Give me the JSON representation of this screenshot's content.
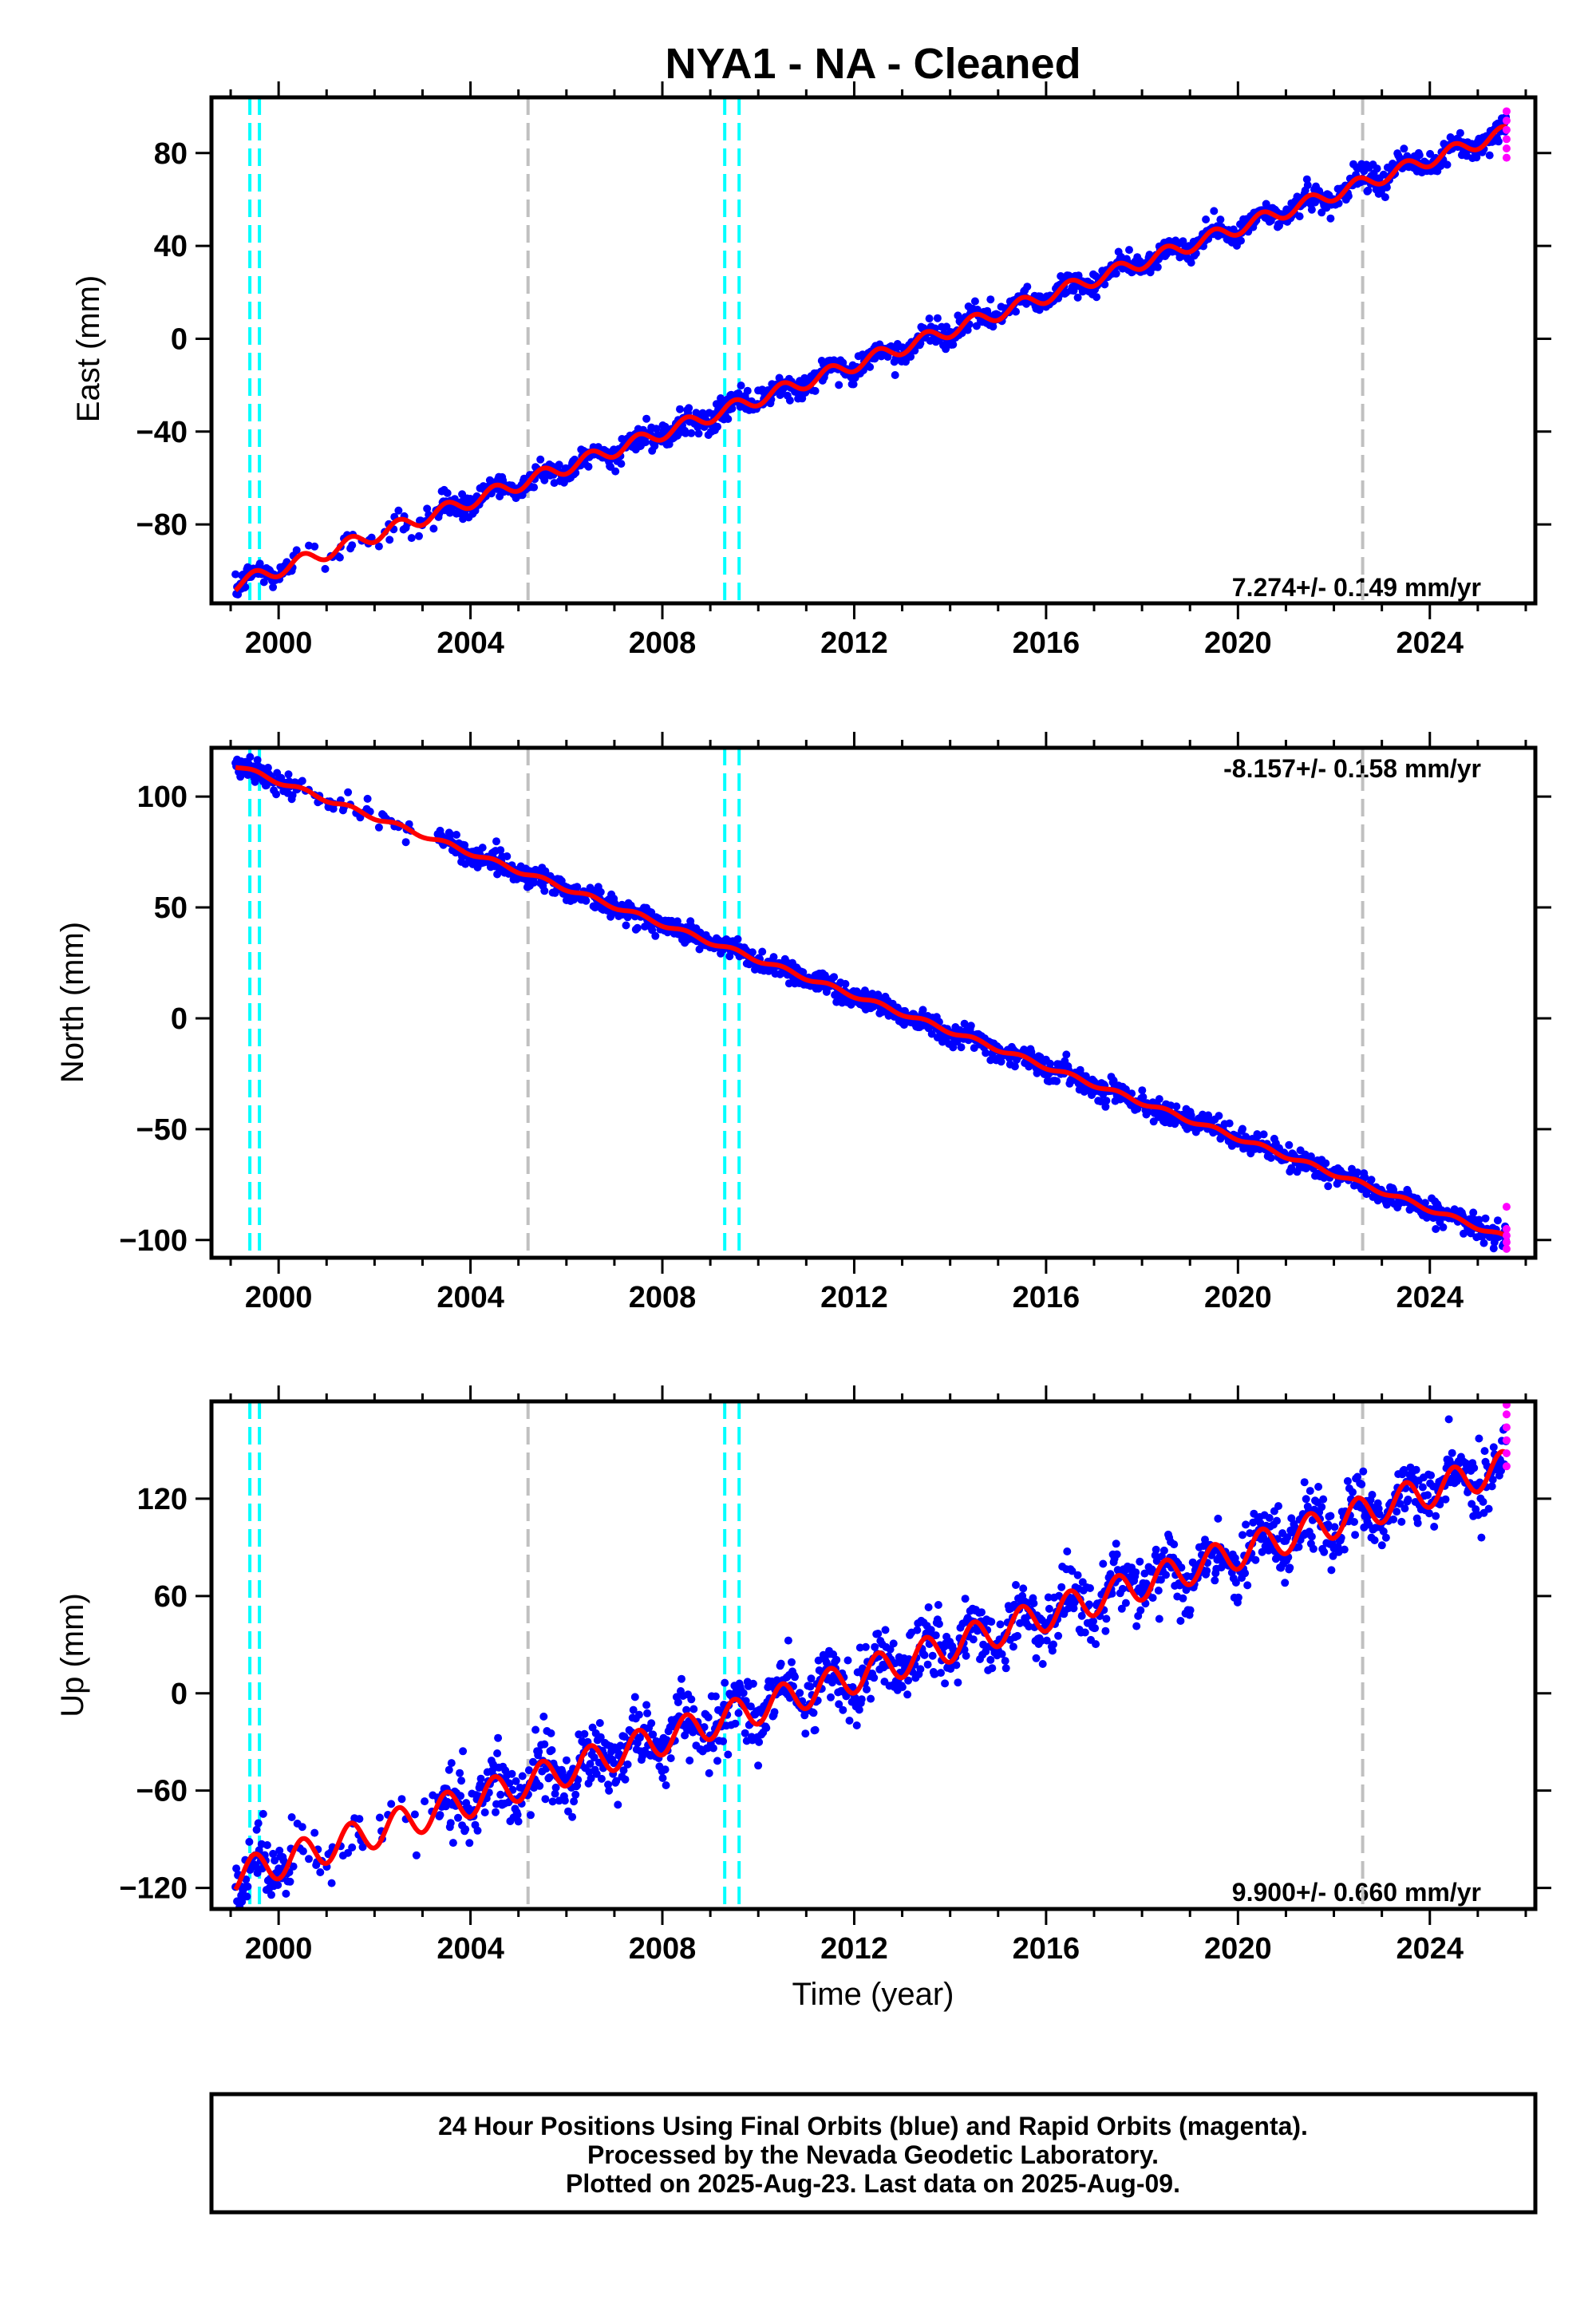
{
  "title": "NYA1  - NA - Cleaned",
  "xlabel": "Time (year)",
  "caption": [
    "24 Hour Positions Using Final Orbits (blue) and Rapid Orbits (magenta).",
    "Processed by the Nevada Geodetic Laboratory.",
    "Plotted on 2025-Aug-23. Last data on 2025-Aug-09."
  ],
  "colors": {
    "final_orbits": "#0000ff",
    "rapid_orbits": "#ff00ff",
    "model_fit": "#ff0000",
    "antenna_change": "#00ffff",
    "equipment_change": "#c0c0c0",
    "frame": "#000000"
  },
  "chart_data": [
    {
      "type": "scatter",
      "component": "east",
      "ylabel": "East (mm)",
      "xlim": [
        1998.6,
        2026.2
      ],
      "ylim": [
        -114,
        104
      ],
      "xticks": [
        2000,
        2004,
        2008,
        2012,
        2016,
        2020,
        2024
      ],
      "yticks": [
        -80,
        -40,
        0,
        40,
        80
      ],
      "rate_label": "7.274+/- 0.149 mm/yr",
      "rate_position": "bottom-right",
      "trend": {
        "start": [
          1999.1,
          -106
        ],
        "end": [
          2025.6,
          89
        ],
        "seasonal_amplitude_mm": 3.0,
        "scatter_mm": 2.5
      },
      "rapid_points": {
        "x": 2025.6,
        "y": [
          78,
          82,
          86,
          90,
          94,
          98
        ]
      },
      "cyan_lines": [
        1999.4,
        1999.6,
        2009.3,
        2009.6
      ],
      "gray_lines": [
        2005.2,
        2022.6
      ]
    },
    {
      "type": "scatter",
      "component": "north",
      "ylabel": "North (mm)",
      "xlim": [
        1998.6,
        2026.2
      ],
      "ylim": [
        -108,
        122
      ],
      "xticks": [
        2000,
        2004,
        2008,
        2012,
        2016,
        2020,
        2024
      ],
      "yticks": [
        -100,
        -50,
        0,
        50,
        100
      ],
      "rate_label": "-8.157+/- 0.158 mm/yr",
      "rate_position": "top-right",
      "trend": {
        "start": [
          1999.1,
          114
        ],
        "end": [
          2025.6,
          -99
        ],
        "seasonal_amplitude_mm": 1.0,
        "scatter_mm": 2.5
      },
      "rapid_points": {
        "x": 2025.6,
        "y": [
          -104,
          -101,
          -98,
          -95,
          -85
        ]
      },
      "cyan_lines": [
        1999.4,
        1999.6,
        2009.3,
        2009.6
      ],
      "gray_lines": [
        2005.2,
        2022.6
      ]
    },
    {
      "type": "scatter",
      "component": "up",
      "ylabel": "Up (mm)",
      "xlim": [
        1998.6,
        2026.2
      ],
      "ylim": [
        -133,
        180
      ],
      "xticks": [
        2000,
        2004,
        2008,
        2012,
        2016,
        2020,
        2024
      ],
      "yticks": [
        -120,
        -60,
        0,
        60,
        120
      ],
      "rate_label": "9.900+/- 0.660 mm/yr",
      "rate_position": "bottom-right",
      "trend": {
        "start": [
          1999.1,
          -113
        ],
        "end": [
          2025.6,
          140
        ],
        "seasonal_amplitude_mm": 10.0,
        "scatter_mm": 10.0
      },
      "rapid_points": {
        "x": 2025.6,
        "y": [
          140,
          148,
          156,
          164,
          172,
          178
        ]
      },
      "cyan_lines": [
        1999.4,
        1999.6,
        2009.3,
        2009.6
      ],
      "gray_lines": [
        2005.2,
        2022.6
      ]
    }
  ]
}
